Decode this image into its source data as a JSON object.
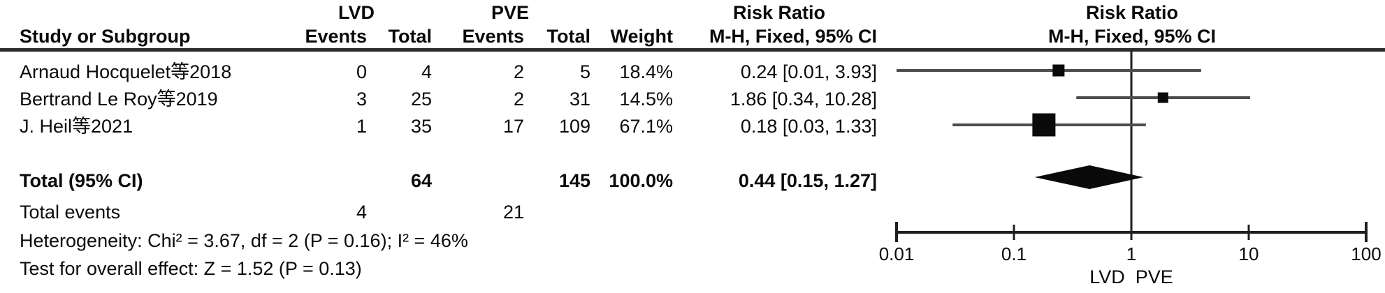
{
  "header": {
    "group_lvd": "LVD",
    "group_pve": "PVE",
    "risk_ratio": "Risk Ratio",
    "method_ci": "M-H, Fixed, 95% CI",
    "study": "Study or Subgroup",
    "events": "Events",
    "total": "Total",
    "weight": "Weight"
  },
  "table": {
    "rows": [
      {
        "study": "Arnaud Hocquelet等2018",
        "lvd_events": "0",
        "lvd_total": "4",
        "pve_events": "2",
        "pve_total": "5",
        "weight": "18.4%",
        "rr_ci": "0.24 [0.01, 3.93]"
      },
      {
        "study": "Bertrand Le Roy等2019",
        "lvd_events": "3",
        "lvd_total": "25",
        "pve_events": "2",
        "pve_total": "31",
        "weight": "14.5%",
        "rr_ci": "1.86 [0.34, 10.28]"
      },
      {
        "study": "J. Heil等2021",
        "lvd_events": "1",
        "lvd_total": "35",
        "pve_events": "17",
        "pve_total": "109",
        "weight": "67.1%",
        "rr_ci": "0.18 [0.03, 1.33]"
      }
    ],
    "total_row": {
      "label": "Total (95% CI)",
      "lvd_total": "64",
      "pve_total": "145",
      "weight": "100.0%",
      "rr_ci": "0.44 [0.15, 1.27]"
    },
    "total_events_row": {
      "label": "Total events",
      "lvd_events": "4",
      "pve_events": "21"
    },
    "heterogeneity": "Heterogeneity: Chi² = 3.67, df = 2 (P = 0.16); I² = 46%",
    "overall_effect": "Test for overall effect: Z = 1.52 (P = 0.13)"
  },
  "chart_data": {
    "type": "forest",
    "scale": "log10",
    "xlim": [
      0.01,
      100
    ],
    "ticks": [
      0.01,
      0.1,
      1,
      10,
      100
    ],
    "tick_labels": [
      "0.01",
      "0.1",
      "1",
      "10",
      "100"
    ],
    "null_line": 1,
    "effect_measure": "Risk Ratio (M-H, Fixed, 95% CI)",
    "studies": [
      {
        "name": "Arnaud Hocquelet等2018",
        "rr": 0.24,
        "ci_low": 0.01,
        "ci_high": 3.93,
        "weight_pct": 18.4
      },
      {
        "name": "Bertrand Le Roy等2019",
        "rr": 1.86,
        "ci_low": 0.34,
        "ci_high": 10.28,
        "weight_pct": 14.5
      },
      {
        "name": "J. Heil等2021",
        "rr": 0.18,
        "ci_low": 0.03,
        "ci_high": 1.33,
        "weight_pct": 67.1
      }
    ],
    "total": {
      "label": "Total (95% CI)",
      "rr": 0.44,
      "ci_low": 0.15,
      "ci_high": 1.27,
      "weight_pct": 100.0
    },
    "footer_left": "LVD",
    "footer_right": "PVE"
  },
  "colors": {
    "ci_line": "#4d4d4d",
    "marker": "#0a0a0a",
    "axis": "#1f1f1f"
  }
}
